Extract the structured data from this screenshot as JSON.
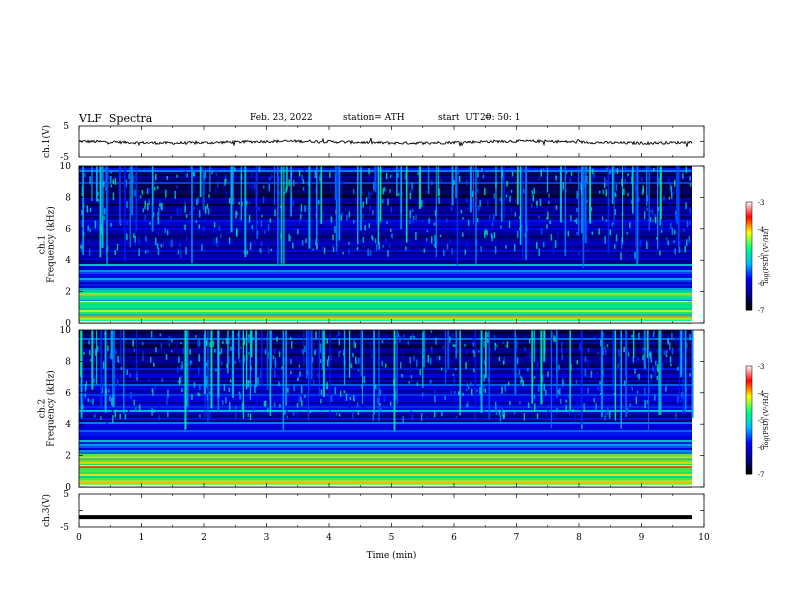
{
  "header": {
    "title": "VLF  Spectra",
    "date": "Feb. 23, 2022",
    "station": "station= ATH",
    "start_label": "start  UT  =",
    "start_value": "20: 50: 1"
  },
  "chart_data": [
    {
      "type": "line",
      "panel": "ch1-waveform",
      "ylabel": "ch.1(V)",
      "ylim": [
        -5,
        5
      ],
      "yticks": [
        "5",
        "-5"
      ],
      "xlim": [
        0,
        10
      ],
      "description_value": "noisy signal near 0 V, amplitude about ±1 V"
    },
    {
      "type": "heatmap",
      "panel": "ch1-spectrogram",
      "ylabel": "ch.1\nFrequency  (kHz)",
      "ylim": [
        0,
        10
      ],
      "yticks": [
        "0",
        "2",
        "4",
        "6",
        "8",
        "10"
      ],
      "xlim": [
        0,
        10
      ],
      "colorbar": {
        "label": "log(PSD) (V²/Hz)",
        "range": [
          -7,
          -3
        ],
        "ticks": [
          "-3",
          "-4",
          "-5",
          "-6",
          "-7"
        ]
      }
    },
    {
      "type": "heatmap",
      "panel": "ch2-spectrogram",
      "ylabel": "ch.2\nFrequency  (kHz)",
      "ylim": [
        0,
        10
      ],
      "yticks": [
        "0",
        "2",
        "4",
        "6",
        "8",
        "10"
      ],
      "xlim": [
        0,
        10
      ],
      "colorbar": {
        "label": "log(PSD) (V²/Hz)",
        "range": [
          -7,
          -3
        ],
        "ticks": [
          "-3",
          "-4",
          "-5",
          "-6",
          "-7"
        ]
      }
    },
    {
      "type": "line",
      "panel": "ch3-waveform",
      "ylabel": "ch.3(V)",
      "ylim": [
        -5,
        5
      ],
      "yticks": [
        "5",
        "-5"
      ],
      "xlim": [
        0,
        10
      ],
      "description_value": "flat trace at about -2 V"
    }
  ],
  "xaxis": {
    "label": "Time  (min)",
    "ticks": [
      "0",
      "1",
      "2",
      "3",
      "4",
      "5",
      "6",
      "7",
      "8",
      "9",
      "10"
    ]
  },
  "colors": {
    "colormap": [
      "#000000",
      "#00008b",
      "#0000ff",
      "#00bfff",
      "#00ff7f",
      "#ffff00",
      "#ff0000",
      "#ffffff"
    ]
  }
}
